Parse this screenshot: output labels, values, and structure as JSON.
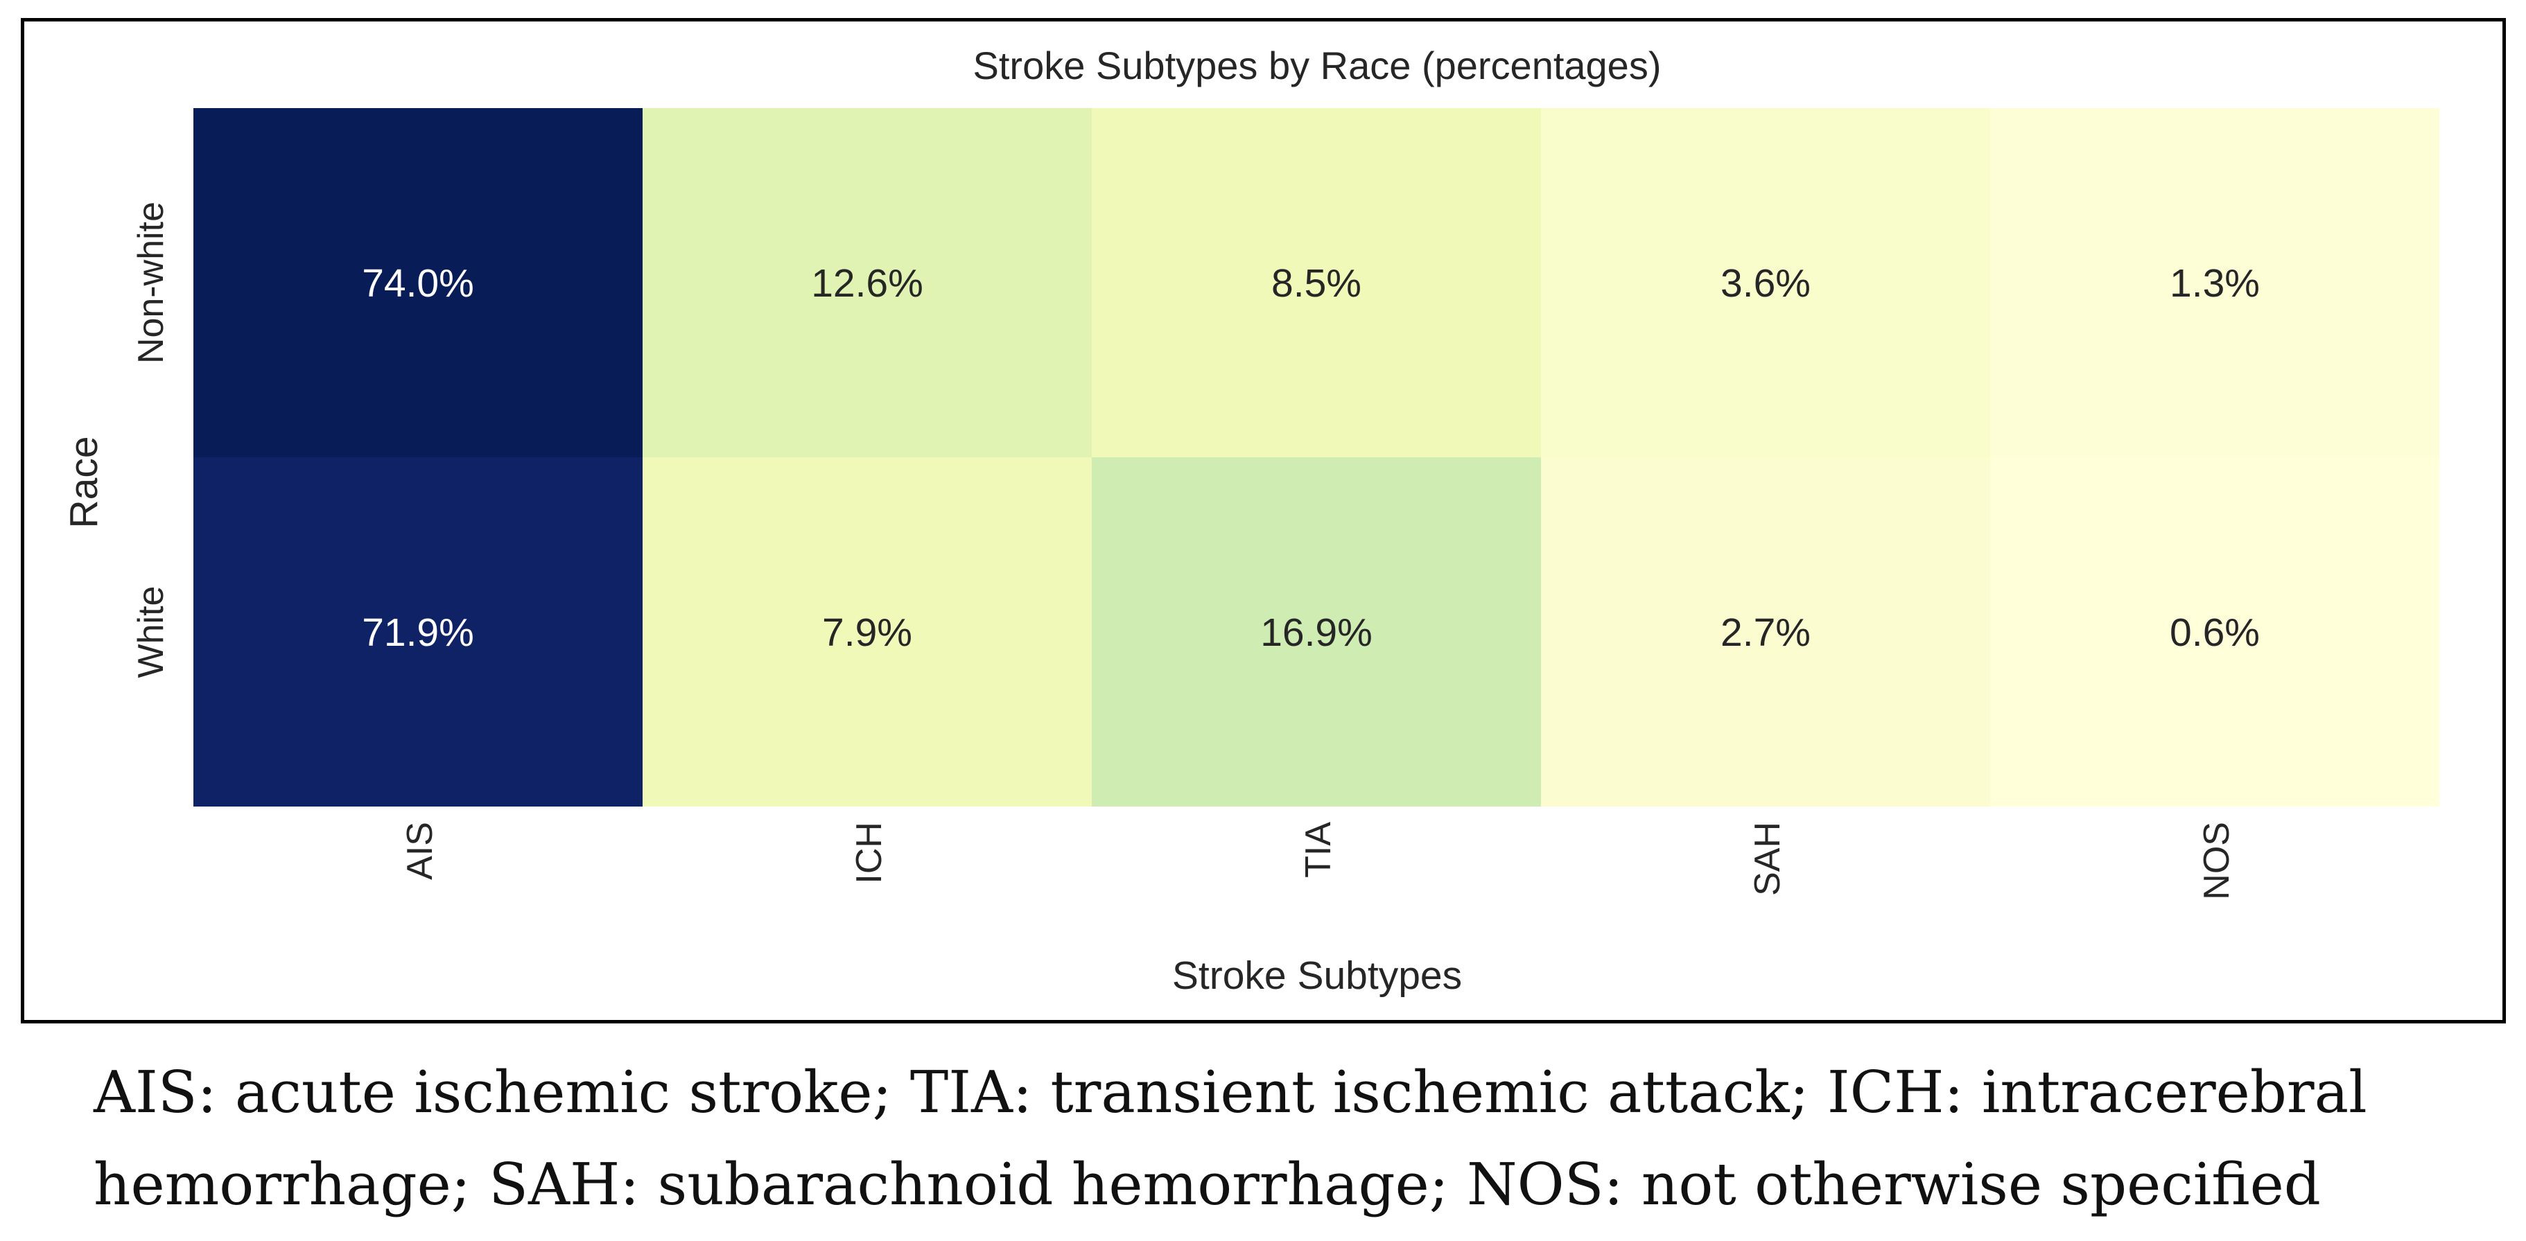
{
  "chart_data": {
    "type": "heatmap",
    "title": "Stroke Subtypes by Race (percentages)",
    "xlabel": "Stroke Subtypes",
    "ylabel": "Race",
    "x_categories": [
      "AIS",
      "ICH",
      "TIA",
      "SAH",
      "NOS"
    ],
    "y_categories": [
      "Non-white",
      "White"
    ],
    "values": [
      [
        74.0,
        12.6,
        8.5,
        3.6,
        1.3
      ],
      [
        71.9,
        7.9,
        16.9,
        2.7,
        0.6
      ]
    ],
    "value_format": "percent_1dp",
    "colormap": "YlGnBu",
    "colorbar": false,
    "grid": false,
    "color_scale": [
      {
        "stop": 0.0,
        "color": "#ffffd9"
      },
      {
        "stop": 0.125,
        "color": "#edf8b1"
      },
      {
        "stop": 0.25,
        "color": "#c7e9b4"
      },
      {
        "stop": 0.375,
        "color": "#7fcdbb"
      },
      {
        "stop": 0.5,
        "color": "#41b6c4"
      },
      {
        "stop": 0.625,
        "color": "#1d91c0"
      },
      {
        "stop": 0.75,
        "color": "#225ea8"
      },
      {
        "stop": 0.875,
        "color": "#253494"
      },
      {
        "stop": 1.0,
        "color": "#081d58"
      }
    ]
  },
  "caption": {
    "line1": "AIS: acute ischemic stroke; TIA: transient ischemic attack; ICH: intracerebral",
    "line2": "hemorrhage; SAH: subarachnoid hemorrhage; NOS: not otherwise specified"
  }
}
